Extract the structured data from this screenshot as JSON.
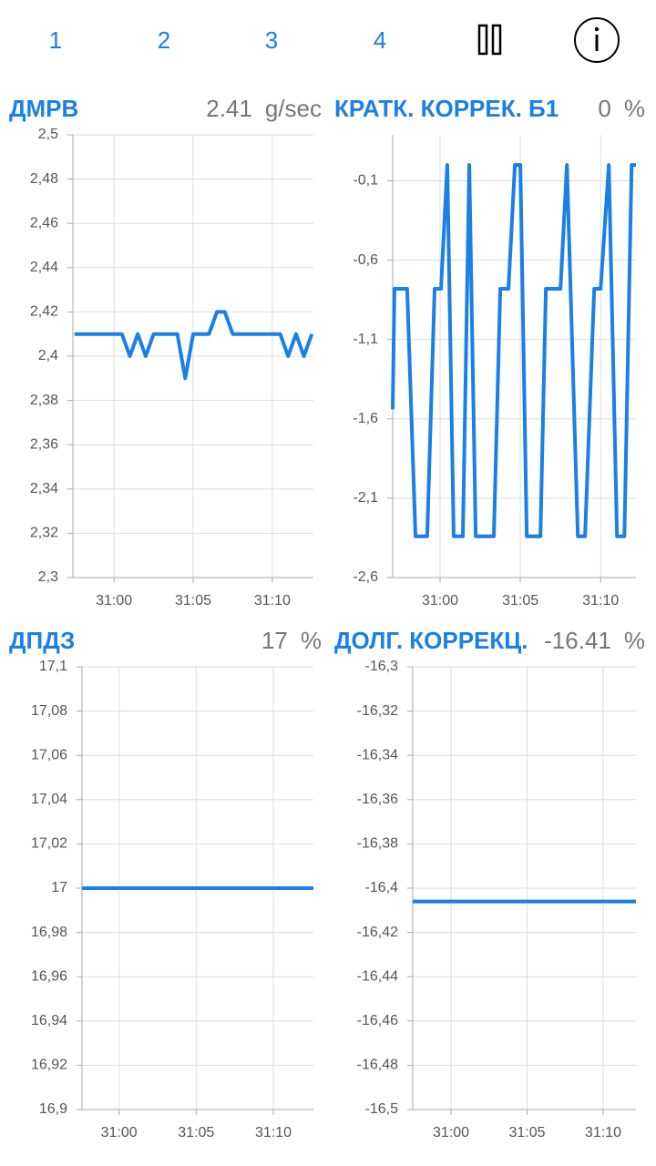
{
  "tabs": [
    "1",
    "2",
    "3",
    "4"
  ],
  "chart_data": [
    {
      "type": "line",
      "title": "ДМРВ",
      "readout": 2.41,
      "unit": "g/sec",
      "color": "#1a7fe6",
      "grid": true,
      "x": [
        1857.5,
        1858,
        1858.5,
        1859,
        1859.5,
        1860,
        1860.5,
        1861,
        1861.5,
        1862,
        1862.5,
        1863,
        1863.5,
        1864,
        1864.5,
        1865,
        1865.5,
        1866,
        1866.5,
        1867,
        1867.5,
        1868,
        1868.5,
        1869,
        1869.5,
        1870,
        1870.5,
        1871,
        1871.5,
        1872,
        1872.5
      ],
      "values": [
        2.41,
        2.41,
        2.41,
        2.41,
        2.41,
        2.41,
        2.41,
        2.4,
        2.41,
        2.4,
        2.41,
        2.41,
        2.41,
        2.41,
        2.39,
        2.41,
        2.41,
        2.41,
        2.42,
        2.42,
        2.41,
        2.41,
        2.41,
        2.41,
        2.41,
        2.41,
        2.41,
        2.4,
        2.41,
        2.4,
        2.41
      ],
      "xlim": [
        1857.4,
        1872.6
      ],
      "xticks": [
        {
          "value": 1860,
          "label": "31:00"
        },
        {
          "value": 1865,
          "label": "31:05"
        },
        {
          "value": 1870,
          "label": "31:10"
        }
      ],
      "ylim": [
        2.3,
        2.5
      ],
      "yticks": [
        {
          "value": 2.3,
          "label": "2,3"
        },
        {
          "value": 2.32,
          "label": "2,32"
        },
        {
          "value": 2.34,
          "label": "2,34"
        },
        {
          "value": 2.36,
          "label": "2,36"
        },
        {
          "value": 2.38,
          "label": "2,38"
        },
        {
          "value": 2.4,
          "label": "2,4"
        },
        {
          "value": 2.42,
          "label": "2,42"
        },
        {
          "value": 2.44,
          "label": "2,44"
        },
        {
          "value": 2.46,
          "label": "2,46"
        },
        {
          "value": 2.48,
          "label": "2,48"
        },
        {
          "value": 2.5,
          "label": "2,5"
        }
      ]
    },
    {
      "type": "line",
      "title": "КРАТК. КОРРЕК. Б1",
      "readout": 0,
      "unit": "%",
      "color": "#1a7fe6",
      "grid": true,
      "x": [
        1857.05,
        1857.16,
        1857.95,
        1858.47,
        1859.2,
        1859.66,
        1860.06,
        1860.45,
        1860.85,
        1861.42,
        1861.82,
        1862.22,
        1863.35,
        1863.75,
        1864.26,
        1864.66,
        1865.0,
        1865.4,
        1866.25,
        1866.59,
        1867.5,
        1867.9,
        1868.58,
        1869.03,
        1869.6,
        1870.0,
        1870.51,
        1871.02,
        1871.48,
        1871.93,
        1872.2
      ],
      "values": [
        -1.54,
        -0.78,
        -0.78,
        -2.34,
        -2.34,
        -0.78,
        -0.78,
        0.0,
        -2.34,
        -2.34,
        0.0,
        -2.34,
        -2.34,
        -0.78,
        -0.78,
        0.0,
        0.0,
        -2.34,
        -2.34,
        -0.78,
        -0.78,
        0.0,
        -2.34,
        -2.34,
        -0.78,
        -0.78,
        0.0,
        -2.34,
        -2.34,
        0.0,
        0.0
      ],
      "xlim": [
        1857.05,
        1872.2
      ],
      "xticks": [
        {
          "value": 1860,
          "label": "31:00"
        },
        {
          "value": 1865,
          "label": "31:05"
        },
        {
          "value": 1870,
          "label": "31:10"
        }
      ],
      "ylim": [
        -2.6,
        0.19
      ],
      "yticks": [
        {
          "value": -2.6,
          "label": "-2,6"
        },
        {
          "value": -2.1,
          "label": "-2,1"
        },
        {
          "value": -1.6,
          "label": "-1,6"
        },
        {
          "value": -1.1,
          "label": "-1,1"
        },
        {
          "value": -0.6,
          "label": "-0,6"
        },
        {
          "value": -0.1,
          "label": "-0,1"
        }
      ]
    },
    {
      "type": "line",
      "title": "ДПДЗ",
      "readout": 17,
      "unit": "%",
      "color": "#1a7fe6",
      "grid": true,
      "x": [
        1857.6,
        1872.6
      ],
      "values": [
        17,
        17
      ],
      "xlim": [
        1857.6,
        1872.6
      ],
      "xticks": [
        {
          "value": 1860,
          "label": "31:00"
        },
        {
          "value": 1865,
          "label": "31:05"
        },
        {
          "value": 1870,
          "label": "31:10"
        }
      ],
      "ylim": [
        16.9,
        17.1
      ],
      "yticks": [
        {
          "value": 16.9,
          "label": "16,9"
        },
        {
          "value": 16.92,
          "label": "16,92"
        },
        {
          "value": 16.94,
          "label": "16,94"
        },
        {
          "value": 16.96,
          "label": "16,96"
        },
        {
          "value": 16.98,
          "label": "16,98"
        },
        17,
        {
          "value": 17.02,
          "label": "17,02"
        },
        {
          "value": 17.04,
          "label": "17,04"
        },
        {
          "value": 17.06,
          "label": "17,06"
        },
        {
          "value": 17.08,
          "label": "17,08"
        },
        {
          "value": 17.1,
          "label": "17,1"
        }
      ]
    },
    {
      "type": "line",
      "title": "ДОЛГ. КОРРЕКЦ.",
      "readout": -16.41,
      "unit": "%",
      "color": "#1a7fe6",
      "grid": true,
      "x": [
        1857.48,
        1872.16
      ],
      "values": [
        -16.406,
        -16.406
      ],
      "xlim": [
        1857.48,
        1872.16
      ],
      "xticks": [
        {
          "value": 1860,
          "label": "31:00"
        },
        {
          "value": 1865,
          "label": "31:05"
        },
        {
          "value": 1870,
          "label": "31:10"
        }
      ],
      "ylim": [
        -16.5,
        -16.3
      ],
      "yticks": [
        {
          "value": -16.5,
          "label": "-16,5"
        },
        {
          "value": -16.48,
          "label": "-16,48"
        },
        {
          "value": -16.46,
          "label": "-16,46"
        },
        {
          "value": -16.44,
          "label": "-16,44"
        },
        {
          "value": -16.42,
          "label": "-16,42"
        },
        {
          "value": -16.4,
          "label": "-16,4"
        },
        {
          "value": -16.38,
          "label": "-16,38"
        },
        {
          "value": -16.36,
          "label": "-16,36"
        },
        {
          "value": -16.34,
          "label": "-16,34"
        },
        {
          "value": -16.32,
          "label": "-16,32"
        },
        {
          "value": -16.3,
          "label": "-16,3"
        }
      ]
    }
  ]
}
